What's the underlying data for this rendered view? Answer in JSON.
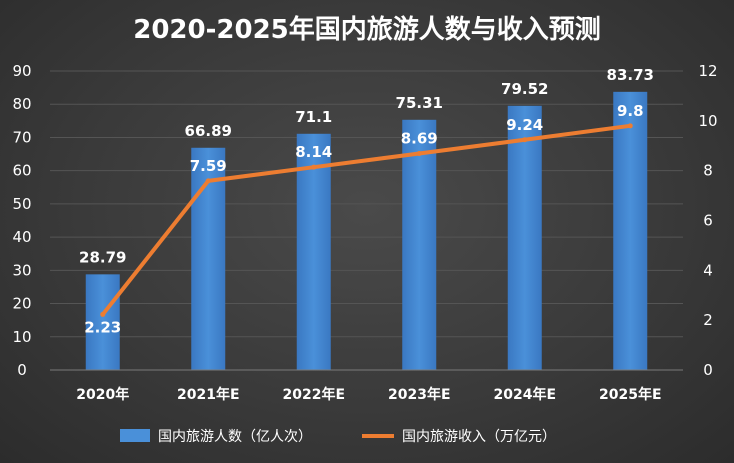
{
  "chart_data": {
    "type": "bar",
    "title": "2020-2025年国内旅游人数与收入预测",
    "categories": [
      "2020年",
      "2021年E",
      "2022年E",
      "2023年E",
      "2024年E",
      "2025年E"
    ],
    "series": [
      {
        "name": "国内旅游人数（亿人次）",
        "type": "bar",
        "axis": "left",
        "color": "#4a90d9",
        "values": [
          28.79,
          66.89,
          71.1,
          75.31,
          79.52,
          83.73
        ]
      },
      {
        "name": "国内旅游收入（万亿元）",
        "type": "line",
        "axis": "right",
        "color": "#ed7d31",
        "values": [
          2.23,
          7.59,
          8.14,
          8.69,
          9.24,
          9.8
        ]
      }
    ],
    "y_left": {
      "min": 0,
      "max": 90,
      "step": 10
    },
    "y_right": {
      "min": 0,
      "max": 12,
      "step": 2
    },
    "grid": true,
    "legend_position": "bottom"
  }
}
